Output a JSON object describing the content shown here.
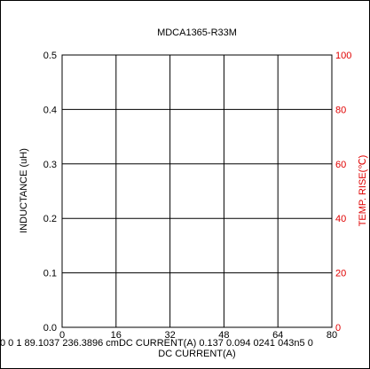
{
  "chart_data": {
    "type": "line",
    "title": "MDCA1365-R33M",
    "xlabel": "DC CURRENT(A)",
    "ylabel": "INDUCTANCE (uH)",
    "y2label": "TEMP. RISE(℃)",
    "xlim": [
      0,
      80
    ],
    "ylim": [
      0,
      0.5
    ],
    "y2lim": [
      0,
      100
    ],
    "x_ticks": [
      "0",
      "16",
      "32",
      "48",
      "64",
      "80"
    ],
    "y_ticks": [
      "0.0",
      "0.1",
      "0.2",
      "0.3",
      "0.4",
      "0.5"
    ],
    "y2_ticks": [
      "0",
      "20",
      "40",
      "60",
      "80",
      "100"
    ],
    "grid": true,
    "series": [],
    "colors": {
      "left_axis": "#000000",
      "right_axis": "#e00000"
    }
  },
  "artifact_text": "0 0 1 89.1037 236.3896 cmDC CURRENT(A) 0.137 0.094 0241 043n5 0"
}
